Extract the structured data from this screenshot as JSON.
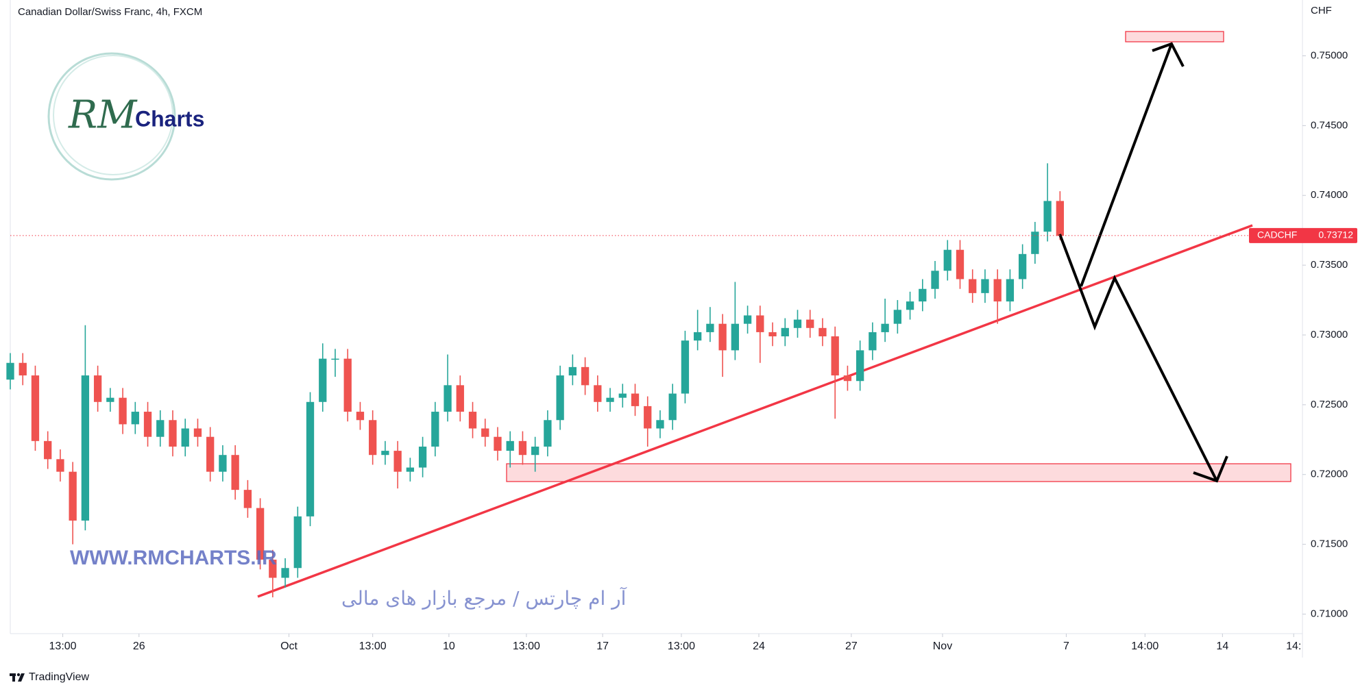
{
  "chart_data": {
    "type": "candlestick",
    "title": "Canadian Dollar/Swiss Franc, 4h, FXCM",
    "y_axis_label": "CHF",
    "up_color": "#26a69a",
    "down_color": "#ef5350",
    "open": [
      0.7268,
      0.728,
      0.7271,
      0.7224,
      0.7211,
      0.7202,
      0.7167,
      0.7271,
      0.7252,
      0.7255,
      0.7236,
      0.7245,
      0.7227,
      0.7239,
      0.722,
      0.7233,
      0.7227,
      0.7202,
      0.7214,
      0.7189,
      0.7176,
      0.7139,
      0.7126,
      0.7133,
      0.717,
      0.7252,
      0.7283,
      0.7283,
      0.7245,
      0.7239,
      0.7214,
      0.7217,
      0.7202,
      0.7205,
      0.722,
      0.7245,
      0.7264,
      0.7245,
      0.7233,
      0.7227,
      0.7217,
      0.7224,
      0.7214,
      0.722,
      0.7239,
      0.7271,
      0.7277,
      0.7264,
      0.7252,
      0.7255,
      0.7258,
      0.7249,
      0.7233,
      0.7239,
      0.7258,
      0.7296,
      0.7302,
      0.7308,
      0.7289,
      0.7308,
      0.7314,
      0.7302,
      0.7299,
      0.7305,
      0.7311,
      0.7305,
      0.7299,
      0.7271,
      0.7267,
      0.7289,
      0.7302,
      0.7308,
      0.7318,
      0.7324,
      0.7333,
      0.7346,
      0.7361,
      0.734,
      0.733,
      0.734,
      0.7324,
      0.734,
      0.7358,
      0.7374,
      0.7396
    ],
    "high": [
      0.7287,
      0.7287,
      0.7278,
      0.7231,
      0.7218,
      0.7209,
      0.7307,
      0.7278,
      0.7262,
      0.7262,
      0.7252,
      0.7252,
      0.7246,
      0.7246,
      0.724,
      0.724,
      0.7234,
      0.7221,
      0.7221,
      0.7196,
      0.7183,
      0.7146,
      0.714,
      0.7177,
      0.7259,
      0.7294,
      0.729,
      0.729,
      0.7252,
      0.7246,
      0.7224,
      0.7224,
      0.7212,
      0.7227,
      0.7252,
      0.7286,
      0.7271,
      0.7252,
      0.724,
      0.7234,
      0.7231,
      0.7231,
      0.7227,
      0.7246,
      0.7278,
      0.7286,
      0.7284,
      0.7271,
      0.7262,
      0.7265,
      0.7265,
      0.7256,
      0.7246,
      0.7265,
      0.7303,
      0.7318,
      0.732,
      0.7315,
      0.7338,
      0.7321,
      0.7321,
      0.7309,
      0.7312,
      0.7318,
      0.7318,
      0.7312,
      0.7306,
      0.7278,
      0.7296,
      0.7309,
      0.7326,
      0.7325,
      0.7331,
      0.734,
      0.7353,
      0.7368,
      0.7368,
      0.7347,
      0.7347,
      0.7347,
      0.7347,
      0.7365,
      0.7381,
      0.7423,
      0.7403
    ],
    "low": [
      0.7261,
      0.7264,
      0.7217,
      0.7204,
      0.7195,
      0.715,
      0.716,
      0.7245,
      0.7245,
      0.7229,
      0.7229,
      0.722,
      0.722,
      0.7213,
      0.7213,
      0.722,
      0.7195,
      0.7195,
      0.7182,
      0.7169,
      0.7132,
      0.7112,
      0.7119,
      0.7126,
      0.7163,
      0.7245,
      0.727,
      0.7238,
      0.7232,
      0.7207,
      0.7207,
      0.719,
      0.7195,
      0.7198,
      0.7213,
      0.7238,
      0.7238,
      0.7226,
      0.722,
      0.721,
      0.7205,
      0.7207,
      0.7202,
      0.7213,
      0.7232,
      0.7264,
      0.7257,
      0.7245,
      0.7245,
      0.7248,
      0.7242,
      0.722,
      0.7226,
      0.7232,
      0.7251,
      0.7289,
      0.7295,
      0.727,
      0.7282,
      0.7301,
      0.728,
      0.7292,
      0.7292,
      0.7298,
      0.7298,
      0.7292,
      0.724,
      0.726,
      0.726,
      0.7282,
      0.7295,
      0.7301,
      0.7311,
      0.7317,
      0.7326,
      0.7339,
      0.7333,
      0.7323,
      0.7323,
      0.7308,
      0.7317,
      0.7333,
      0.7351,
      0.7367,
      0.7368
    ],
    "close": [
      0.728,
      0.7271,
      0.7224,
      0.7211,
      0.7202,
      0.7167,
      0.7271,
      0.7252,
      0.7255,
      0.7236,
      0.7245,
      0.7227,
      0.7239,
      0.722,
      0.7233,
      0.7227,
      0.7202,
      0.7214,
      0.7189,
      0.7176,
      0.7139,
      0.7126,
      0.7133,
      0.717,
      0.7252,
      0.7283,
      0.7283,
      0.7245,
      0.7239,
      0.7214,
      0.7217,
      0.7202,
      0.7205,
      0.722,
      0.7245,
      0.7264,
      0.7245,
      0.7233,
      0.7227,
      0.7217,
      0.7224,
      0.7214,
      0.722,
      0.7239,
      0.7271,
      0.7277,
      0.7264,
      0.7252,
      0.7255,
      0.7258,
      0.7249,
      0.7233,
      0.7239,
      0.7258,
      0.7296,
      0.7302,
      0.7308,
      0.7289,
      0.7308,
      0.7314,
      0.7302,
      0.7299,
      0.7305,
      0.7311,
      0.7305,
      0.7299,
      0.7271,
      0.7267,
      0.7289,
      0.7302,
      0.7308,
      0.7318,
      0.7324,
      0.7333,
      0.7346,
      0.7361,
      0.734,
      0.733,
      0.734,
      0.7324,
      0.734,
      0.7358,
      0.7374,
      0.7396,
      0.7371
    ],
    "ylim": [
      0.7086,
      0.754
    ],
    "yticks": [
      {
        "value": 0.75,
        "label": "0.75000"
      },
      {
        "value": 0.745,
        "label": "0.74500"
      },
      {
        "value": 0.74,
        "label": "0.74000"
      },
      {
        "value": 0.735,
        "label": "0.73500"
      },
      {
        "value": 0.73,
        "label": "0.73000"
      },
      {
        "value": 0.725,
        "label": "0.72500"
      },
      {
        "value": 0.72,
        "label": "0.72000"
      },
      {
        "value": 0.715,
        "label": "0.71500"
      },
      {
        "value": 0.71,
        "label": "0.71000"
      }
    ],
    "xlim": [
      0,
      103.4
    ],
    "xticks": [
      {
        "value": 4.2,
        "label": "13:00"
      },
      {
        "value": 10.3,
        "label": "26"
      },
      {
        "value": 22.3,
        "label": "Oct"
      },
      {
        "value": 29,
        "label": "13:00"
      },
      {
        "value": 35.1,
        "label": "10"
      },
      {
        "value": 41.3,
        "label": "13:00"
      },
      {
        "value": 47.4,
        "label": "17"
      },
      {
        "value": 53.7,
        "label": "13:00"
      },
      {
        "value": 59.9,
        "label": "24"
      },
      {
        "value": 67.3,
        "label": "27"
      },
      {
        "value": 74.6,
        "label": "Nov"
      },
      {
        "value": 84.5,
        "label": "7"
      },
      {
        "value": 90.8,
        "label": "14:00"
      },
      {
        "value": 97,
        "label": "14"
      },
      {
        "value": 102.7,
        "label": "14:"
      }
    ],
    "last_price": {
      "symbol": "CADCHF",
      "value": 0.73712,
      "color": "#f23645"
    }
  },
  "branding": {
    "logo_script": "RM",
    "logo_text": "Charts",
    "website": "WWW.RMCHARTS.IR",
    "tagline": "آر ام چارتس / مرجع بازار های مالی",
    "footer": "TradingView"
  }
}
